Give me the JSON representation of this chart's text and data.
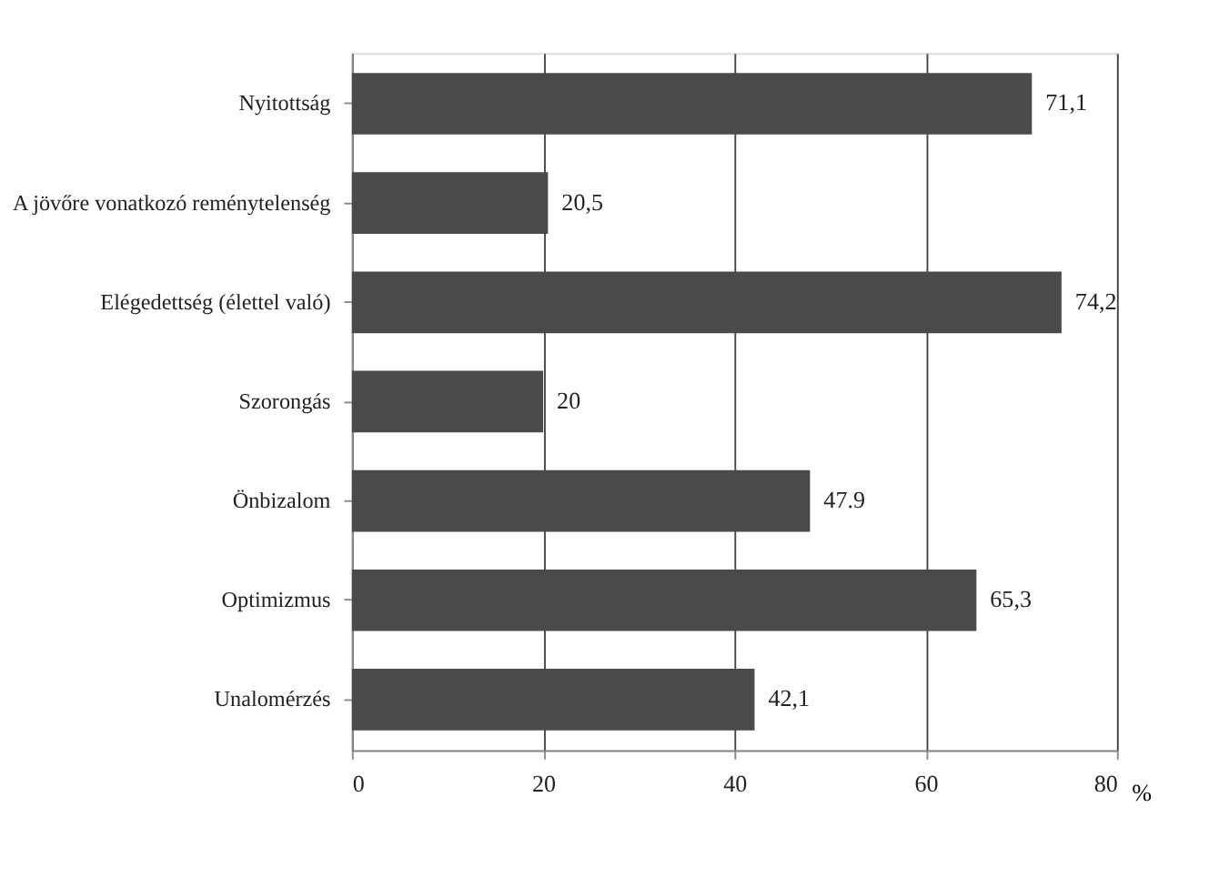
{
  "chart_data": {
    "type": "bar",
    "orientation": "horizontal",
    "xlabel": "%",
    "categories": [
      "Nyitottság",
      "A jövőre vonatkozó reménytelenség",
      "Elégedettség (élettel való)",
      "Szorongás",
      "Önbizalom",
      "Optimizmus",
      "Unalomérzés"
    ],
    "values": [
      71.1,
      20.5,
      74.2,
      20,
      47.9,
      65.3,
      42.1
    ],
    "value_labels": [
      "71,1",
      "20,5",
      "74,2",
      "20",
      "47.9",
      "65,3",
      "42,1"
    ],
    "color": "#4a4a4a",
    "xlim": [
      0,
      80
    ],
    "xticks": [
      0,
      20,
      40,
      60,
      80
    ],
    "grid": "x"
  }
}
